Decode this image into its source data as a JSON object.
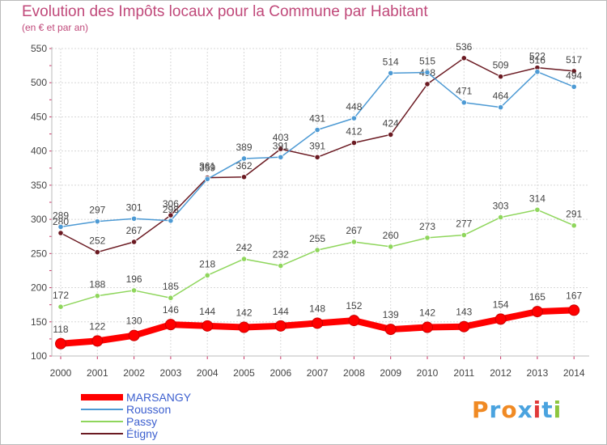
{
  "title": "Evolution des Impôts locaux pour la Commune par Habitant",
  "subtitle": "(en € et par an)",
  "logo": {
    "text": "Proxiti",
    "colors": [
      "#f08a24",
      "#4aa3df",
      "#f08a24",
      "#4aa3df",
      "#e03a3a",
      "#4aa3df",
      "#8dc63f"
    ]
  },
  "chart_data": {
    "type": "line",
    "x": [
      "2000",
      "2001",
      "2002",
      "2003",
      "2004",
      "2005",
      "2006",
      "2007",
      "2008",
      "2009",
      "2010",
      "2011",
      "2012",
      "2013",
      "2014"
    ],
    "y_ticks": [
      "100",
      "150",
      "200",
      "250",
      "300",
      "350",
      "400",
      "450",
      "500",
      "550"
    ],
    "ylim": [
      100,
      550
    ],
    "grid": true,
    "legend_position": "bottom-left",
    "series": [
      {
        "name": "Étigny",
        "color": "#6b1a22",
        "values": [
          280,
          252,
          267,
          306,
          361,
          362,
          403,
          391,
          412,
          424,
          498,
          536,
          509,
          522,
          517
        ],
        "labels": [
          "280",
          "252",
          "267",
          "306",
          "361",
          "362",
          "403",
          "391",
          "412",
          "424",
          "498",
          "536",
          "509",
          "522",
          "517"
        ]
      },
      {
        "name": "Rousson",
        "color": "#4d9ad4",
        "values": [
          289,
          297,
          301,
          298,
          359,
          389,
          391,
          431,
          448,
          514,
          515,
          471,
          464,
          516,
          494
        ],
        "labels": [
          "289",
          "297",
          "301",
          "298",
          "359",
          "389",
          "391",
          "431",
          "448",
          "514",
          "515",
          "471",
          "464",
          "516",
          "494"
        ]
      },
      {
        "name": "Passy",
        "color": "#8fd65c",
        "values": [
          172,
          188,
          196,
          185,
          218,
          242,
          232,
          255,
          267,
          260,
          273,
          277,
          303,
          314,
          291
        ],
        "labels": [
          "172",
          "188",
          "196",
          "185",
          "218",
          "242",
          "232",
          "255",
          "267",
          "260",
          "273",
          "277",
          "303",
          "314",
          "291"
        ]
      },
      {
        "name": "MARSANGY",
        "color": "#ff0000",
        "values": [
          118,
          122,
          130,
          146,
          144,
          142,
          144,
          148,
          152,
          139,
          142,
          143,
          154,
          165,
          167
        ],
        "labels": [
          "118",
          "122",
          "130",
          "146",
          "144",
          "142",
          "144",
          "148",
          "152",
          "139",
          "142",
          "143",
          "154",
          "165",
          "167"
        ]
      }
    ]
  },
  "legend": [
    {
      "name": "MARSANGY",
      "color": "#ff0000",
      "thick": true
    },
    {
      "name": "Rousson",
      "color": "#4d9ad4",
      "thick": false
    },
    {
      "name": "Passy",
      "color": "#8fd65c",
      "thick": false
    },
    {
      "name": "Étigny",
      "color": "#6b1a22",
      "thick": false
    }
  ]
}
